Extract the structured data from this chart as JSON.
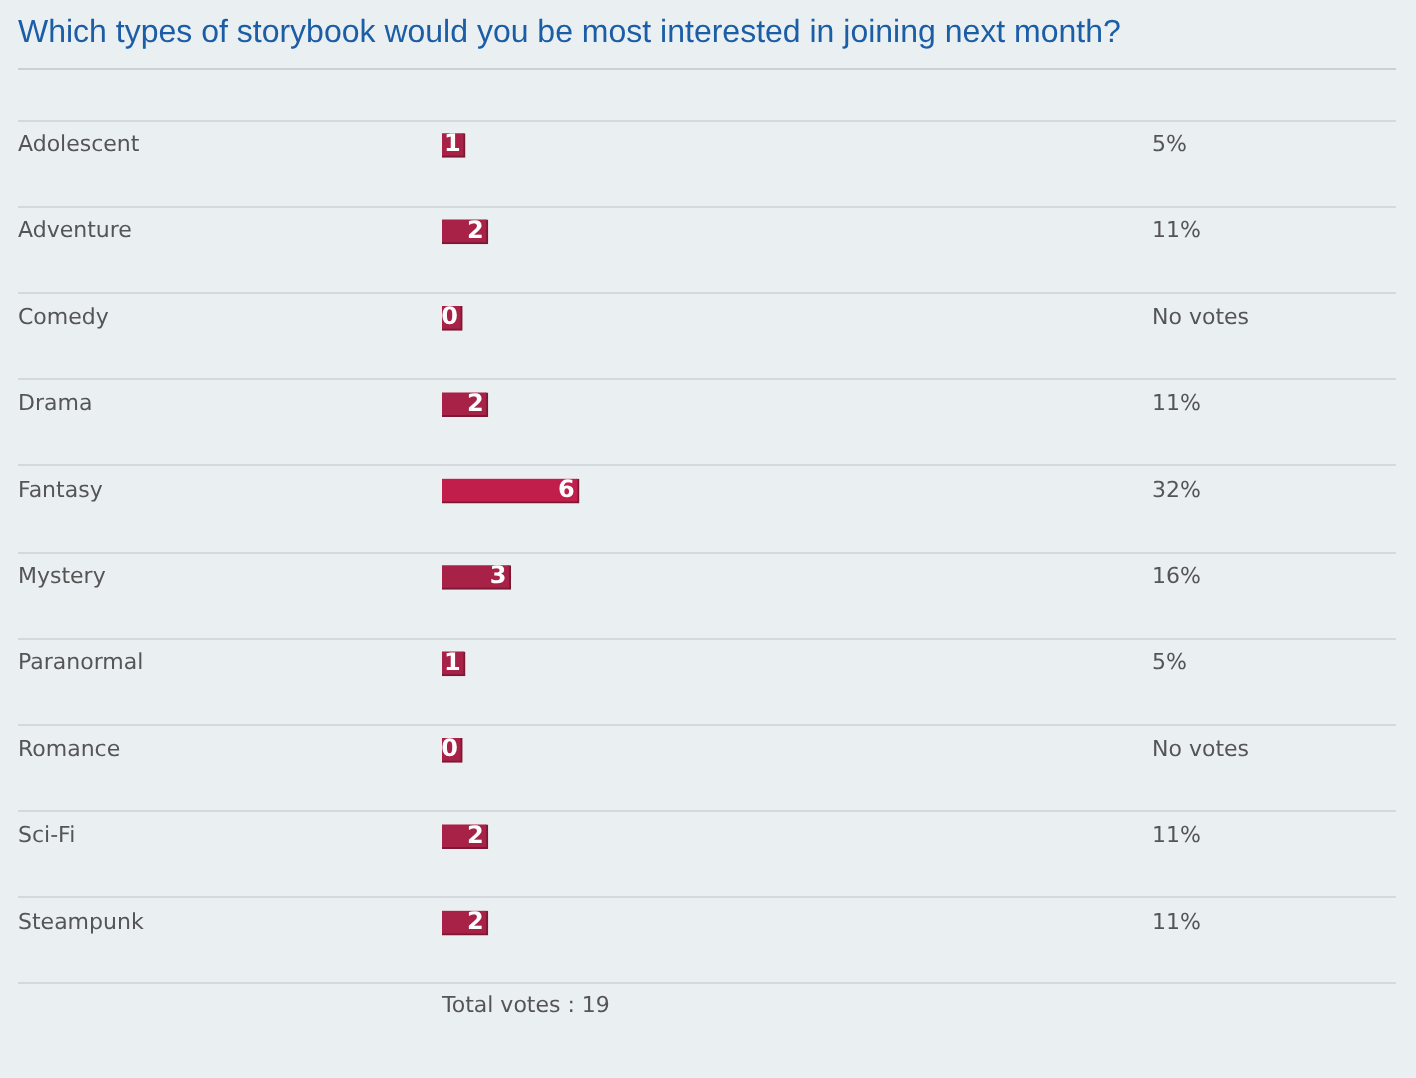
{
  "chart_data": {
    "type": "bar",
    "orientation": "horizontal",
    "title": "Which types of storybook would you be most interested in joining next month?",
    "categories": [
      "Adolescent",
      "Adventure",
      "Comedy",
      "Drama",
      "Fantasy",
      "Mystery",
      "Paranormal",
      "Romance",
      "Sci-Fi",
      "Steampunk"
    ],
    "values": [
      1,
      2,
      0,
      2,
      6,
      3,
      1,
      0,
      2,
      2
    ],
    "colors": [
      "#a82146",
      "#a82146",
      "#a82146",
      "#a82146",
      "#c21e4c",
      "#a82146",
      "#a82146",
      "#a82146",
      "#a82146",
      "#a82146"
    ],
    "data_labels": true,
    "grid": "y",
    "legend": false,
    "annotations": [
      "5%",
      "11%",
      "No votes",
      "11%",
      "32%",
      "16%",
      "5%",
      "No votes",
      "11%",
      "11%",
      "Total votes : 19"
    ]
  }
}
